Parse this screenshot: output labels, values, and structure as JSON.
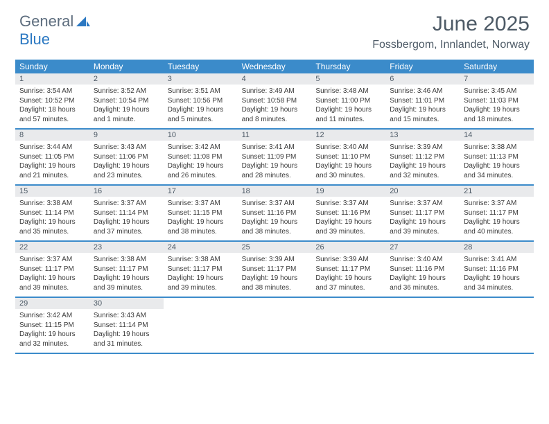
{
  "brand": {
    "general": "General",
    "blue": "Blue"
  },
  "title": "June 2025",
  "location": "Fossbergom, Innlandet, Norway",
  "colors": {
    "header_bg": "#3b8bca",
    "header_text": "#ffffff",
    "daynum_bg": "#e9eaec",
    "text": "#4d5a66",
    "accent": "#2b78c2"
  },
  "weekdays": [
    "Sunday",
    "Monday",
    "Tuesday",
    "Wednesday",
    "Thursday",
    "Friday",
    "Saturday"
  ],
  "weeks": [
    [
      {
        "n": "1",
        "sr": "Sunrise: 3:54 AM",
        "ss": "Sunset: 10:52 PM",
        "dl": "Daylight: 18 hours and 57 minutes."
      },
      {
        "n": "2",
        "sr": "Sunrise: 3:52 AM",
        "ss": "Sunset: 10:54 PM",
        "dl": "Daylight: 19 hours and 1 minute."
      },
      {
        "n": "3",
        "sr": "Sunrise: 3:51 AM",
        "ss": "Sunset: 10:56 PM",
        "dl": "Daylight: 19 hours and 5 minutes."
      },
      {
        "n": "4",
        "sr": "Sunrise: 3:49 AM",
        "ss": "Sunset: 10:58 PM",
        "dl": "Daylight: 19 hours and 8 minutes."
      },
      {
        "n": "5",
        "sr": "Sunrise: 3:48 AM",
        "ss": "Sunset: 11:00 PM",
        "dl": "Daylight: 19 hours and 11 minutes."
      },
      {
        "n": "6",
        "sr": "Sunrise: 3:46 AM",
        "ss": "Sunset: 11:01 PM",
        "dl": "Daylight: 19 hours and 15 minutes."
      },
      {
        "n": "7",
        "sr": "Sunrise: 3:45 AM",
        "ss": "Sunset: 11:03 PM",
        "dl": "Daylight: 19 hours and 18 minutes."
      }
    ],
    [
      {
        "n": "8",
        "sr": "Sunrise: 3:44 AM",
        "ss": "Sunset: 11:05 PM",
        "dl": "Daylight: 19 hours and 21 minutes."
      },
      {
        "n": "9",
        "sr": "Sunrise: 3:43 AM",
        "ss": "Sunset: 11:06 PM",
        "dl": "Daylight: 19 hours and 23 minutes."
      },
      {
        "n": "10",
        "sr": "Sunrise: 3:42 AM",
        "ss": "Sunset: 11:08 PM",
        "dl": "Daylight: 19 hours and 26 minutes."
      },
      {
        "n": "11",
        "sr": "Sunrise: 3:41 AM",
        "ss": "Sunset: 11:09 PM",
        "dl": "Daylight: 19 hours and 28 minutes."
      },
      {
        "n": "12",
        "sr": "Sunrise: 3:40 AM",
        "ss": "Sunset: 11:10 PM",
        "dl": "Daylight: 19 hours and 30 minutes."
      },
      {
        "n": "13",
        "sr": "Sunrise: 3:39 AM",
        "ss": "Sunset: 11:12 PM",
        "dl": "Daylight: 19 hours and 32 minutes."
      },
      {
        "n": "14",
        "sr": "Sunrise: 3:38 AM",
        "ss": "Sunset: 11:13 PM",
        "dl": "Daylight: 19 hours and 34 minutes."
      }
    ],
    [
      {
        "n": "15",
        "sr": "Sunrise: 3:38 AM",
        "ss": "Sunset: 11:14 PM",
        "dl": "Daylight: 19 hours and 35 minutes."
      },
      {
        "n": "16",
        "sr": "Sunrise: 3:37 AM",
        "ss": "Sunset: 11:14 PM",
        "dl": "Daylight: 19 hours and 37 minutes."
      },
      {
        "n": "17",
        "sr": "Sunrise: 3:37 AM",
        "ss": "Sunset: 11:15 PM",
        "dl": "Daylight: 19 hours and 38 minutes."
      },
      {
        "n": "18",
        "sr": "Sunrise: 3:37 AM",
        "ss": "Sunset: 11:16 PM",
        "dl": "Daylight: 19 hours and 38 minutes."
      },
      {
        "n": "19",
        "sr": "Sunrise: 3:37 AM",
        "ss": "Sunset: 11:16 PM",
        "dl": "Daylight: 19 hours and 39 minutes."
      },
      {
        "n": "20",
        "sr": "Sunrise: 3:37 AM",
        "ss": "Sunset: 11:17 PM",
        "dl": "Daylight: 19 hours and 39 minutes."
      },
      {
        "n": "21",
        "sr": "Sunrise: 3:37 AM",
        "ss": "Sunset: 11:17 PM",
        "dl": "Daylight: 19 hours and 40 minutes."
      }
    ],
    [
      {
        "n": "22",
        "sr": "Sunrise: 3:37 AM",
        "ss": "Sunset: 11:17 PM",
        "dl": "Daylight: 19 hours and 39 minutes."
      },
      {
        "n": "23",
        "sr": "Sunrise: 3:38 AM",
        "ss": "Sunset: 11:17 PM",
        "dl": "Daylight: 19 hours and 39 minutes."
      },
      {
        "n": "24",
        "sr": "Sunrise: 3:38 AM",
        "ss": "Sunset: 11:17 PM",
        "dl": "Daylight: 19 hours and 39 minutes."
      },
      {
        "n": "25",
        "sr": "Sunrise: 3:39 AM",
        "ss": "Sunset: 11:17 PM",
        "dl": "Daylight: 19 hours and 38 minutes."
      },
      {
        "n": "26",
        "sr": "Sunrise: 3:39 AM",
        "ss": "Sunset: 11:17 PM",
        "dl": "Daylight: 19 hours and 37 minutes."
      },
      {
        "n": "27",
        "sr": "Sunrise: 3:40 AM",
        "ss": "Sunset: 11:16 PM",
        "dl": "Daylight: 19 hours and 36 minutes."
      },
      {
        "n": "28",
        "sr": "Sunrise: 3:41 AM",
        "ss": "Sunset: 11:16 PM",
        "dl": "Daylight: 19 hours and 34 minutes."
      }
    ],
    [
      {
        "n": "29",
        "sr": "Sunrise: 3:42 AM",
        "ss": "Sunset: 11:15 PM",
        "dl": "Daylight: 19 hours and 32 minutes."
      },
      {
        "n": "30",
        "sr": "Sunrise: 3:43 AM",
        "ss": "Sunset: 11:14 PM",
        "dl": "Daylight: 19 hours and 31 minutes."
      },
      null,
      null,
      null,
      null,
      null
    ]
  ]
}
